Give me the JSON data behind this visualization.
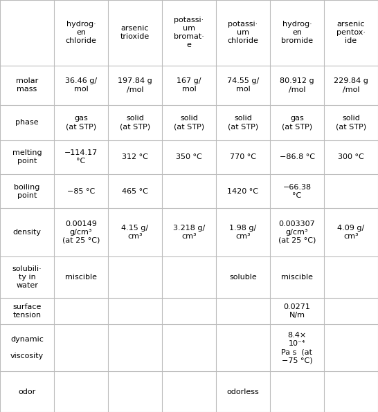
{
  "columns": [
    "",
    "hydrog·\nen\nchloride",
    "arsenic\ntrioxide",
    "potassi·\num\nbromat·\ne",
    "potassi·\num\nchloride",
    "hydrog·\nen\nbromide",
    "arsenic\npentox·\nide"
  ],
  "rows": [
    {
      "label": "molar\nmass",
      "values": [
        "36.46 g/\nmol",
        "197.84 g\n/mol",
        "167 g/\nmol",
        "74.55 g/\nmol",
        "80.912 g\n/mol",
        "229.84 g\n/mol"
      ]
    },
    {
      "label": "phase",
      "values": [
        "gas\n(at STP)",
        "solid\n(at STP)",
        "solid\n(at STP)",
        "solid\n(at STP)",
        "gas\n(at STP)",
        "solid\n(at STP)"
      ]
    },
    {
      "label": "melting\npoint",
      "values": [
        "−114.17\n°C",
        "312 °C",
        "350 °C",
        "770 °C",
        "−86.8 °C",
        "300 °C"
      ]
    },
    {
      "label": "boiling\npoint",
      "values": [
        "−85 °C",
        "465 °C",
        "",
        "1420 °C",
        "−66.38\n°C",
        ""
      ]
    },
    {
      "label": "density",
      "values": [
        "0.00149\ng/cm³\n(at 25 °C)",
        "4.15 g/\ncm³",
        "3.218 g/\ncm³",
        "1.98 g/\ncm³",
        "0.003307\ng/cm³\n(at 25 °C)",
        "4.09 g/\ncm³"
      ]
    },
    {
      "label": "solubili·\nty in\nwater",
      "values": [
        "miscible",
        "",
        "",
        "soluble",
        "miscible",
        ""
      ]
    },
    {
      "label": "surface\ntension",
      "values": [
        "",
        "",
        "",
        "",
        "0.0271\nN/m",
        ""
      ]
    },
    {
      "label": "dynamic\n\nviscosity",
      "values": [
        "",
        "",
        "",
        "",
        "8.4×\n10⁻⁴\nPa s  (at\n−75 °C)",
        ""
      ]
    },
    {
      "label": "odor",
      "values": [
        "",
        "",
        "",
        "odorless",
        "",
        ""
      ]
    }
  ],
  "line_color": "#bbbbbb",
  "text_color": "#000000",
  "small_text_color": "#555555",
  "bg_color": "#ffffff",
  "main_fontsize": 8.0,
  "small_fontsize": 6.5
}
